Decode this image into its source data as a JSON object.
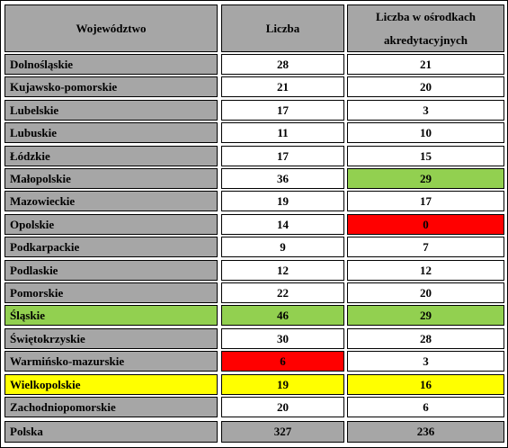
{
  "headers": [
    "Województwo",
    "Liczba",
    "Liczba w ośrodkach akredytacyjnych"
  ],
  "rows": [
    {
      "name": "Dolnośląskie",
      "count": "28",
      "accredited": "21"
    },
    {
      "name": "Kujawsko-pomorskie",
      "count": "21",
      "accredited": "20"
    },
    {
      "name": "Lubelskie",
      "count": "17",
      "accredited": "3"
    },
    {
      "name": "Lubuskie",
      "count": "11",
      "accredited": "10"
    },
    {
      "name": "Łódzkie",
      "count": "17",
      "accredited": "15"
    },
    {
      "name": "Małopolskie",
      "count": "36",
      "accredited": "29"
    },
    {
      "name": "Mazowieckie",
      "count": "19",
      "accredited": "17"
    },
    {
      "name": "Opolskie",
      "count": "14",
      "accredited": "0"
    },
    {
      "name": "Podkarpackie",
      "count": "9",
      "accredited": "7"
    },
    {
      "name": "Podlaskie",
      "count": "12",
      "accredited": "12"
    },
    {
      "name": "Pomorskie",
      "count": "22",
      "accredited": "20"
    },
    {
      "name": "Śląskie",
      "count": "46",
      "accredited": "29"
    },
    {
      "name": "Świętokrzyskie",
      "count": "30",
      "accredited": "28"
    },
    {
      "name": "Warmińsko-mazurskie",
      "count": "6",
      "accredited": "3"
    },
    {
      "name": "Wielkopolskie",
      "count": "19",
      "accredited": "16"
    },
    {
      "name": "Zachodniopomorskie",
      "count": "20",
      "accredited": "6"
    }
  ],
  "total": {
    "name": "Polska",
    "count": "327",
    "accredited": "236"
  },
  "highlight_colors": {
    "green": "#92d050",
    "red": "#ff0000",
    "yellow": "#ffff00",
    "gray": "#a6a6a6"
  }
}
